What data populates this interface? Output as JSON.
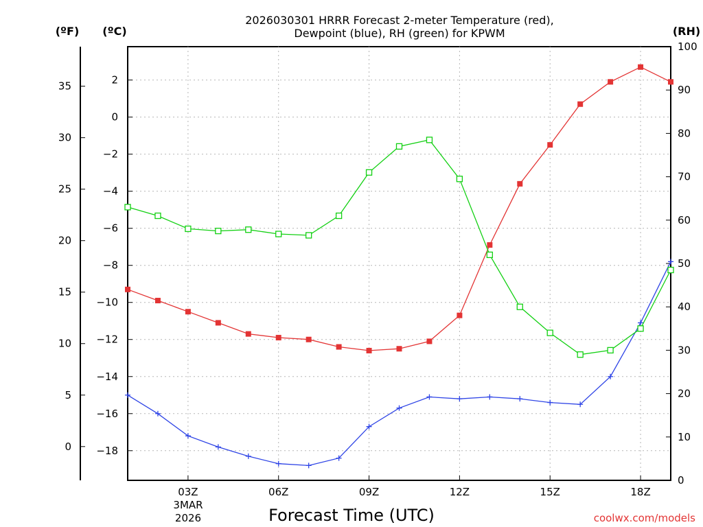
{
  "chart_data": {
    "type": "line",
    "title_line1": "2026030301 HRRR Forecast 2-meter Temperature (red),",
    "title_line2": "Dewpoint (blue), RH (green) for KPWM",
    "xlabel": "Forecast Time (UTC)",
    "credit": "coolwx.com/models",
    "units": {
      "fahrenheit": "(ºF)",
      "celsius": "(ºC)",
      "rh": "(RH)"
    },
    "x_hours": [
      1,
      2,
      3,
      4,
      5,
      6,
      7,
      8,
      9,
      10,
      11,
      12,
      13,
      14,
      15,
      16,
      17,
      18,
      19
    ],
    "xlim": [
      1,
      19
    ],
    "x_ticks": [
      {
        "hour": 3,
        "label": "03Z"
      },
      {
        "hour": 6,
        "label": "06Z"
      },
      {
        "hour": 9,
        "label": "09Z"
      },
      {
        "hour": 12,
        "label": "12Z"
      },
      {
        "hour": 15,
        "label": "15Z"
      },
      {
        "hour": 18,
        "label": "18Z"
      }
    ],
    "date_label_1": "3MAR",
    "date_label_2": "2026",
    "celsius_axis": {
      "ylim": [
        -19.6,
        3.8
      ],
      "ticks": [
        2,
        0,
        -2,
        -4,
        -6,
        -8,
        -10,
        -12,
        -14,
        -16,
        -18
      ]
    },
    "fahrenheit_axis": {
      "ticks": [
        35,
        30,
        25,
        20,
        15,
        10,
        5,
        0
      ]
    },
    "rh_axis": {
      "ylim": [
        0,
        100
      ],
      "ticks": [
        100,
        90,
        80,
        70,
        60,
        50,
        40,
        30,
        20,
        10,
        0
      ]
    },
    "series": [
      {
        "name": "Temperature",
        "axis": "celsius",
        "color": "#e33434",
        "marker": "filled-square",
        "values": [
          -9.3,
          -9.9,
          -10.5,
          -11.1,
          -11.7,
          -11.9,
          -12.0,
          -12.4,
          -12.6,
          -12.5,
          -12.1,
          -10.7,
          -6.9,
          -3.6,
          -1.5,
          0.7,
          1.9,
          2.7,
          1.9
        ]
      },
      {
        "name": "Dewpoint",
        "axis": "celsius",
        "color": "#2e44e6",
        "marker": "plus",
        "values": [
          -15.0,
          -16.0,
          -17.2,
          -17.8,
          -18.3,
          -18.7,
          -18.8,
          -18.4,
          -16.7,
          -15.7,
          -15.1,
          -15.2,
          -15.1,
          -15.2,
          -15.4,
          -15.5,
          -14.0,
          -11.1,
          -7.8
        ]
      },
      {
        "name": "RH",
        "axis": "rh",
        "color": "#12d012",
        "marker": "open-square",
        "values": [
          63,
          61,
          58,
          57.5,
          57.8,
          56.8,
          56.5,
          61,
          71,
          77,
          78.5,
          69.5,
          52,
          40,
          34,
          29,
          30,
          35,
          48.5
        ]
      }
    ]
  }
}
